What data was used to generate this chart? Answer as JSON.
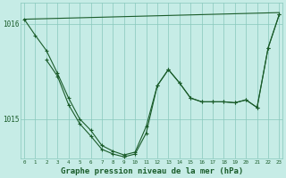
{
  "background_color": "#c6ece6",
  "grid_color": "#88c8bc",
  "line_color": "#1a5c2a",
  "title": "Graphe pression niveau de la mer (hPa)",
  "xlabel_fontsize": 6.5,
  "ylabel_ticks": [
    1015,
    1016
  ],
  "xlim": [
    -0.3,
    23.3
  ],
  "ylim": [
    1014.58,
    1016.22
  ],
  "xticks": [
    0,
    1,
    2,
    3,
    4,
    5,
    6,
    7,
    8,
    9,
    10,
    11,
    12,
    13,
    14,
    15,
    16,
    17,
    18,
    19,
    20,
    21,
    22,
    23
  ],
  "series1_straight": {
    "x": [
      0,
      23
    ],
    "y": [
      1016.05,
      1016.12
    ]
  },
  "series2": {
    "x": [
      0,
      1,
      2,
      3,
      4,
      5,
      6,
      7,
      8,
      9,
      10,
      11,
      12,
      13,
      14,
      15,
      16,
      17,
      18,
      19,
      20,
      21,
      22,
      23
    ],
    "y": [
      1016.05,
      1015.88,
      1015.72,
      1015.48,
      1015.22,
      1015.0,
      1014.88,
      1014.72,
      1014.66,
      1014.62,
      1014.65,
      1014.92,
      1015.35,
      1015.52,
      1015.38,
      1015.22,
      1015.18,
      1015.18,
      1015.18,
      1015.17,
      1015.2,
      1015.12,
      1015.75,
      1016.1
    ]
  },
  "series3": {
    "x": [
      2,
      3,
      4,
      5,
      6,
      7,
      8,
      9,
      10,
      11,
      12,
      13,
      14,
      15,
      16,
      17,
      18,
      19,
      20,
      21,
      22,
      23
    ],
    "y": [
      1015.62,
      1015.45,
      1015.15,
      1014.95,
      1014.82,
      1014.68,
      1014.63,
      1014.6,
      1014.63,
      1014.85,
      1015.35,
      1015.52,
      1015.38,
      1015.22,
      1015.18,
      1015.18,
      1015.18,
      1015.17,
      1015.2,
      1015.12,
      1015.75,
      1016.1
    ]
  }
}
